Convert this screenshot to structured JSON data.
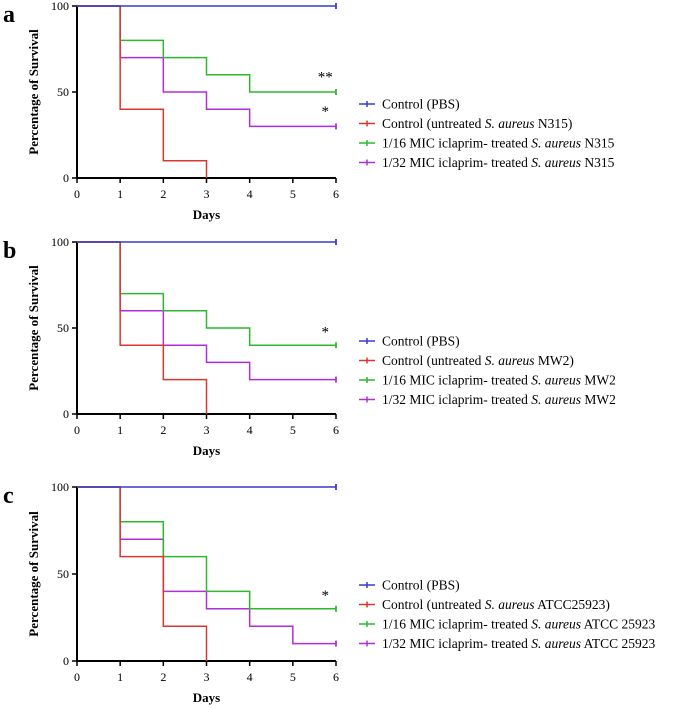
{
  "chart_data": [
    {
      "type": "line",
      "step": true,
      "panel_label": "a",
      "ylabel": "Percentage of Survival",
      "xlabel": "Days",
      "xlim": [
        0,
        6
      ],
      "ylim": [
        0,
        100
      ],
      "x_ticks": [
        "0",
        "1",
        "2",
        "3",
        "4",
        "5",
        "6"
      ],
      "y_ticks": [
        "0",
        "50",
        "100"
      ],
      "series": [
        {
          "name": "Control (PBS)",
          "legend_prefix": "Control (PBS)",
          "legend_italic": "",
          "legend_suffix": "",
          "color": "#3a3acc",
          "points": [
            [
              0,
              100
            ],
            [
              6,
              100
            ]
          ]
        },
        {
          "name": "Control (untreated S. aureus N315)",
          "legend_prefix": "Control (untreated ",
          "legend_italic": "S. aureus",
          "legend_suffix": " N315)",
          "color": "#d9382e",
          "points": [
            [
              0,
              100
            ],
            [
              1,
              100
            ],
            [
              1,
              40
            ],
            [
              2,
              40
            ],
            [
              2,
              10
            ],
            [
              3,
              10
            ],
            [
              3,
              0
            ]
          ]
        },
        {
          "name": "1/16 MIC iclaprim- treated S. aureus N315",
          "legend_prefix": "1/16 MIC iclaprim- treated ",
          "legend_italic": "S. aureus",
          "legend_suffix": " N315",
          "color": "#2eb82e",
          "points": [
            [
              0,
              100
            ],
            [
              1,
              100
            ],
            [
              1,
              80
            ],
            [
              2,
              80
            ],
            [
              2,
              70
            ],
            [
              3,
              70
            ],
            [
              3,
              60
            ],
            [
              4,
              60
            ],
            [
              4,
              50
            ],
            [
              6,
              50
            ]
          ]
        },
        {
          "name": "1/32 MIC iclaprim- treated S. aureus N315",
          "legend_prefix": "1/32 MIC iclaprim- treated ",
          "legend_italic": "S. aureus",
          "legend_suffix": " N315",
          "color": "#b02ed6",
          "points": [
            [
              0,
              100
            ],
            [
              1,
              100
            ],
            [
              1,
              70
            ],
            [
              2,
              70
            ],
            [
              2,
              50
            ],
            [
              3,
              50
            ],
            [
              3,
              40
            ],
            [
              4,
              40
            ],
            [
              4,
              30
            ],
            [
              6,
              30
            ]
          ]
        }
      ],
      "annotations": [
        {
          "text": "**",
          "x": 5.75,
          "y": 56
        },
        {
          "text": "*",
          "x": 5.75,
          "y": 36
        }
      ]
    },
    {
      "type": "line",
      "step": true,
      "panel_label": "b",
      "ylabel": "Percentage of Survival",
      "xlabel": "Days",
      "xlim": [
        0,
        6
      ],
      "ylim": [
        0,
        100
      ],
      "x_ticks": [
        "0",
        "1",
        "2",
        "3",
        "4",
        "5",
        "6"
      ],
      "y_ticks": [
        "0",
        "50",
        "100"
      ],
      "series": [
        {
          "name": "Control (PBS)",
          "legend_prefix": "Control (PBS)",
          "legend_italic": "",
          "legend_suffix": "",
          "color": "#3a3acc",
          "points": [
            [
              0,
              100
            ],
            [
              6,
              100
            ]
          ]
        },
        {
          "name": "Control (untreated S. aureus MW2)",
          "legend_prefix": "Control (untreated ",
          "legend_italic": "S. aureus",
          "legend_suffix": " MW2)",
          "color": "#d9382e",
          "points": [
            [
              0,
              100
            ],
            [
              1,
              100
            ],
            [
              1,
              40
            ],
            [
              2,
              40
            ],
            [
              2,
              20
            ],
            [
              3,
              20
            ],
            [
              3,
              0
            ]
          ]
        },
        {
          "name": "1/16 MIC iclaprim- treated S. aureus MW2",
          "legend_prefix": "1/16 MIC iclaprim- treated ",
          "legend_italic": "S. aureus",
          "legend_suffix": " MW2",
          "color": "#2eb82e",
          "points": [
            [
              0,
              100
            ],
            [
              1,
              100
            ],
            [
              1,
              70
            ],
            [
              2,
              70
            ],
            [
              2,
              60
            ],
            [
              3,
              60
            ],
            [
              3,
              50
            ],
            [
              4,
              50
            ],
            [
              4,
              40
            ],
            [
              6,
              40
            ]
          ]
        },
        {
          "name": "1/32 MIC iclaprim- treated S. aureus MW2",
          "legend_prefix": "1/32 MIC iclaprim- treated ",
          "legend_italic": "S. aureus",
          "legend_suffix": " MW2",
          "color": "#b02ed6",
          "points": [
            [
              0,
              100
            ],
            [
              1,
              100
            ],
            [
              1,
              60
            ],
            [
              2,
              60
            ],
            [
              2,
              40
            ],
            [
              3,
              40
            ],
            [
              3,
              30
            ],
            [
              4,
              30
            ],
            [
              4,
              20
            ],
            [
              6,
              20
            ]
          ]
        }
      ],
      "annotations": [
        {
          "text": "*",
          "x": 5.75,
          "y": 45
        }
      ]
    },
    {
      "type": "line",
      "step": true,
      "panel_label": "c",
      "ylabel": "Percentage of Survival",
      "xlabel": "Days",
      "xlim": [
        0,
        6
      ],
      "ylim": [
        0,
        100
      ],
      "x_ticks": [
        "0",
        "1",
        "2",
        "3",
        "4",
        "5",
        "6"
      ],
      "y_ticks": [
        "0",
        "50",
        "100"
      ],
      "series": [
        {
          "name": "Control (PBS)",
          "legend_prefix": "Control (PBS)",
          "legend_italic": "",
          "legend_suffix": "",
          "color": "#3a3acc",
          "points": [
            [
              0,
              100
            ],
            [
              6,
              100
            ]
          ]
        },
        {
          "name": "Control (untreated S. aureus ATCC25923)",
          "legend_prefix": "Control (untreated ",
          "legend_italic": "S. aureus",
          "legend_suffix": " ATCC25923)",
          "color": "#d9382e",
          "points": [
            [
              0,
              100
            ],
            [
              1,
              100
            ],
            [
              1,
              60
            ],
            [
              2,
              60
            ],
            [
              2,
              20
            ],
            [
              3,
              20
            ],
            [
              3,
              0
            ]
          ]
        },
        {
          "name": "1/16 MIC iclaprim- treated S. aureus ATCC 25923",
          "legend_prefix": "1/16 MIC iclaprim- treated ",
          "legend_italic": "S. aureus",
          "legend_suffix": " ATCC 25923",
          "color": "#2eb82e",
          "points": [
            [
              0,
              100
            ],
            [
              1,
              100
            ],
            [
              1,
              80
            ],
            [
              2,
              80
            ],
            [
              2,
              60
            ],
            [
              3,
              60
            ],
            [
              3,
              40
            ],
            [
              4,
              40
            ],
            [
              4,
              30
            ],
            [
              6,
              30
            ]
          ]
        },
        {
          "name": "1/32 MIC iclaprim- treated S. aureus ATCC 25923",
          "legend_prefix": "1/32 MIC iclaprim- treated ",
          "legend_italic": "S. aureus",
          "legend_suffix": " ATCC 25923",
          "color": "#b02ed6",
          "points": [
            [
              0,
              100
            ],
            [
              1,
              100
            ],
            [
              1,
              70
            ],
            [
              2,
              70
            ],
            [
              2,
              40
            ],
            [
              3,
              40
            ],
            [
              3,
              30
            ],
            [
              4,
              30
            ],
            [
              4,
              20
            ],
            [
              5,
              20
            ],
            [
              5,
              10
            ],
            [
              6,
              10
            ]
          ]
        }
      ],
      "annotations": [
        {
          "text": "*",
          "x": 5.75,
          "y": 35
        }
      ]
    }
  ]
}
